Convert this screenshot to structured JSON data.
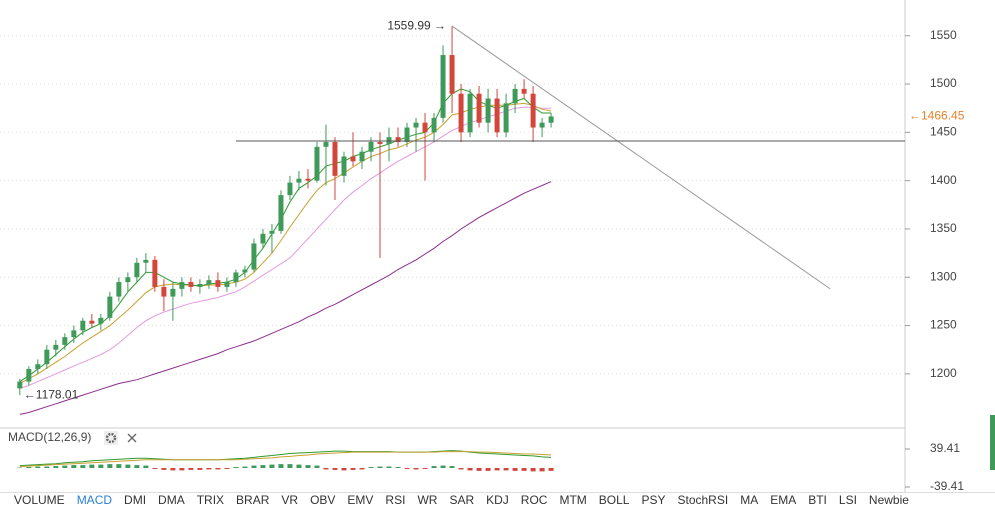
{
  "chart_data": [
    {
      "type": "candlestick",
      "xlim": [
        -2.2,
        98.3
      ],
      "ylim": [
        1145,
        1587
      ],
      "yticks": [
        1200,
        1250,
        1300,
        1350,
        1400,
        1450,
        1500,
        1550
      ],
      "grid": true,
      "up_color": "#3f9a5a",
      "down_color": "#d2463c",
      "open": [
        1185,
        1192,
        1205,
        1210,
        1225,
        1230,
        1238,
        1245,
        1255,
        1252,
        1258,
        1280,
        1295,
        1300,
        1315,
        1318,
        1290,
        1280,
        1288,
        1295,
        1290,
        1293,
        1297,
        1290,
        1295,
        1305,
        1308,
        1335,
        1345,
        1348,
        1385,
        1398,
        1402,
        1400,
        1435,
        1440,
        1405,
        1425,
        1420,
        1430,
        1440,
        1438,
        1445,
        1440,
        1455,
        1460,
        1450,
        1465,
        1530,
        1490,
        1450,
        1490,
        1460,
        1485,
        1450,
        1480,
        1495,
        1490,
        1455,
        1460
      ],
      "high": [
        1195,
        1208,
        1215,
        1230,
        1235,
        1242,
        1250,
        1258,
        1262,
        1262,
        1285,
        1300,
        1305,
        1320,
        1325,
        1322,
        1298,
        1295,
        1300,
        1300,
        1298,
        1302,
        1305,
        1300,
        1308,
        1312,
        1340,
        1350,
        1355,
        1390,
        1405,
        1410,
        1412,
        1440,
        1458,
        1445,
        1430,
        1450,
        1435,
        1445,
        1450,
        1455,
        1455,
        1460,
        1465,
        1470,
        1470,
        1540,
        1559.99,
        1500,
        1495,
        1498,
        1495,
        1495,
        1490,
        1500,
        1505,
        1498,
        1465,
        1470
      ],
      "low": [
        1178.01,
        1188,
        1200,
        1205,
        1218,
        1225,
        1232,
        1240,
        1248,
        1245,
        1255,
        1275,
        1285,
        1295,
        1305,
        1285,
        1265,
        1255,
        1280,
        1285,
        1283,
        1288,
        1285,
        1285,
        1290,
        1300,
        1305,
        1330,
        1325,
        1345,
        1380,
        1390,
        1392,
        1398,
        1395,
        1380,
        1398,
        1415,
        1412,
        1420,
        1320,
        1420,
        1435,
        1435,
        1430,
        1400,
        1440,
        1460,
        1470,
        1440,
        1445,
        1455,
        1450,
        1445,
        1445,
        1470,
        1485,
        1440,
        1445,
        1455
      ],
      "close": [
        1192,
        1205,
        1210,
        1225,
        1230,
        1238,
        1245,
        1255,
        1252,
        1258,
        1280,
        1295,
        1300,
        1315,
        1318,
        1290,
        1280,
        1288,
        1295,
        1290,
        1293,
        1297,
        1290,
        1295,
        1305,
        1308,
        1335,
        1345,
        1348,
        1385,
        1398,
        1402,
        1400,
        1435,
        1440,
        1405,
        1425,
        1420,
        1430,
        1440,
        1438,
        1445,
        1440,
        1455,
        1460,
        1450,
        1465,
        1530,
        1490,
        1450,
        1490,
        1460,
        1485,
        1450,
        1480,
        1495,
        1490,
        1455,
        1460,
        1466.45
      ],
      "lines": [
        {
          "color": "#8b2f8f",
          "values": [
            1158,
            1160,
            1163,
            1166,
            1169,
            1172,
            1175,
            1178,
            1181,
            1184,
            1187,
            1190,
            1192,
            1194,
            1197,
            1200,
            1203,
            1206,
            1209,
            1212,
            1215,
            1218,
            1221,
            1225,
            1228,
            1231,
            1234,
            1238,
            1242,
            1246,
            1250,
            1254,
            1259,
            1263,
            1268,
            1272,
            1277,
            1282,
            1287,
            1292,
            1297,
            1302,
            1308,
            1313,
            1318,
            1324,
            1330,
            1337,
            1343,
            1350,
            1356,
            1362,
            1367,
            1372,
            1377,
            1382,
            1387,
            1391,
            1395,
            1399
          ]
        },
        {
          "color": "#e39ae0",
          "values": [
            1185,
            1188,
            1192,
            1196,
            1200,
            1204,
            1208,
            1212,
            1216,
            1220,
            1225,
            1232,
            1240,
            1248,
            1255,
            1260,
            1264,
            1267,
            1270,
            1273,
            1275,
            1277,
            1279,
            1282,
            1285,
            1290,
            1296,
            1302,
            1308,
            1314,
            1320,
            1330,
            1340,
            1350,
            1360,
            1370,
            1380,
            1388,
            1395,
            1402,
            1408,
            1414,
            1420,
            1425,
            1430,
            1435,
            1440,
            1446,
            1452,
            1456,
            1460,
            1463,
            1466,
            1469,
            1472,
            1475,
            1476,
            1476,
            1475,
            1475
          ]
        },
        {
          "color": "#c8a030",
          "values": [
            1190,
            1195,
            1200,
            1206,
            1212,
            1218,
            1225,
            1232,
            1238,
            1244,
            1250,
            1258,
            1266,
            1275,
            1284,
            1290,
            1292,
            1293,
            1292,
            1292,
            1291,
            1292,
            1292,
            1293,
            1295,
            1298,
            1305,
            1315,
            1325,
            1338,
            1352,
            1365,
            1378,
            1390,
            1398,
            1402,
            1408,
            1414,
            1420,
            1425,
            1428,
            1432,
            1434,
            1438,
            1442,
            1445,
            1450,
            1458,
            1468,
            1470,
            1474,
            1476,
            1478,
            1478,
            1478,
            1479,
            1480,
            1478,
            1474,
            1472
          ]
        },
        {
          "color": "#2e9a2e",
          "values": [
            1192,
            1198,
            1205,
            1212,
            1220,
            1228,
            1236,
            1243,
            1248,
            1252,
            1260,
            1272,
            1285,
            1295,
            1305,
            1305,
            1300,
            1295,
            1293,
            1292,
            1291,
            1293,
            1294,
            1295,
            1298,
            1305,
            1318,
            1330,
            1345,
            1360,
            1378,
            1392,
            1398,
            1405,
            1415,
            1418,
            1420,
            1425,
            1428,
            1432,
            1435,
            1438,
            1442,
            1445,
            1448,
            1450,
            1460,
            1480,
            1490,
            1495,
            1492,
            1482,
            1478,
            1475,
            1478,
            1482,
            1485,
            1476,
            1470,
            1470
          ]
        }
      ],
      "trend_lines": [
        {
          "color": "#999999",
          "x": [
            48,
            90
          ],
          "y": [
            1559.99,
            1288
          ]
        },
        {
          "color": "#555555",
          "x": [
            24,
            98.3
          ],
          "y": [
            1441,
            1441
          ]
        }
      ],
      "annotations": [
        {
          "label": "1559.99 →",
          "value": 1559.99,
          "x": 48,
          "side": "left",
          "color": "#333333"
        },
        {
          "label": "←1178.01",
          "value": 1178.01,
          "x": 0,
          "side": "right",
          "color": "#333333"
        },
        {
          "label": "←1466.45",
          "value": 1466.45,
          "x": 98.3,
          "side": "right",
          "color": "#e8822a"
        }
      ]
    },
    {
      "type": "macd",
      "title": "MACD(12,26,9)",
      "ylim": [
        -49.8,
        78.8
      ],
      "yticks": [
        -39.41,
        39.41
      ],
      "up_color": "#3f9a5a",
      "down_color": "#d2463c",
      "histogram": [
        1,
        2,
        3,
        3,
        4,
        5,
        6,
        6,
        7,
        7,
        8,
        8,
        7,
        6,
        5,
        -2,
        -4,
        -5,
        -5,
        -4,
        -4,
        -3,
        -3,
        -2,
        2,
        3,
        5,
        6,
        7,
        8,
        8,
        7,
        6,
        5,
        -3,
        -4,
        -5,
        -4,
        -3,
        2,
        3,
        3,
        2,
        -2,
        -3,
        -2,
        4,
        5,
        4,
        -3,
        -5,
        -6,
        -6,
        -5,
        -5,
        -6,
        -6,
        -7,
        -7,
        -6
      ],
      "lines": [
        {
          "color": "#2e9a2e",
          "values": [
            5,
            6,
            7,
            8,
            9,
            11,
            12,
            13,
            15,
            16,
            17,
            18,
            19,
            20,
            20,
            19,
            18,
            17,
            17,
            17,
            17,
            17,
            17,
            18,
            19,
            20,
            22,
            24,
            26,
            28,
            30,
            31,
            32,
            33,
            34,
            35,
            35,
            34,
            34,
            34,
            34,
            34,
            33,
            33,
            33,
            33,
            34,
            35,
            36,
            35,
            33,
            31,
            30,
            29,
            28,
            27,
            26,
            25,
            23,
            22
          ]
        },
        {
          "color": "#c8a030",
          "values": [
            3,
            4,
            5,
            6,
            7,
            8,
            9,
            10,
            11,
            12,
            13,
            14,
            15,
            16,
            17,
            17,
            17,
            17,
            17,
            17,
            17,
            17,
            17,
            17,
            17,
            18,
            19,
            20,
            21,
            23,
            24,
            26,
            27,
            29,
            30,
            31,
            32,
            33,
            33,
            33,
            33,
            33,
            33,
            33,
            33,
            33,
            33,
            34,
            34,
            34,
            34,
            33,
            33,
            32,
            31,
            30,
            29,
            29,
            28,
            27
          ]
        }
      ]
    }
  ],
  "tabs": {
    "items": [
      "VOLUME",
      "MACD",
      "DMI",
      "DMA",
      "TRIX",
      "BRAR",
      "VR",
      "OBV",
      "EMV",
      "RSI",
      "WR",
      "SAR",
      "KDJ",
      "ROC",
      "MTM",
      "BOLL",
      "PSY",
      "StochRSI",
      "MA",
      "EMA",
      "BTI",
      "LSI",
      "Newbie"
    ],
    "active": 1
  }
}
